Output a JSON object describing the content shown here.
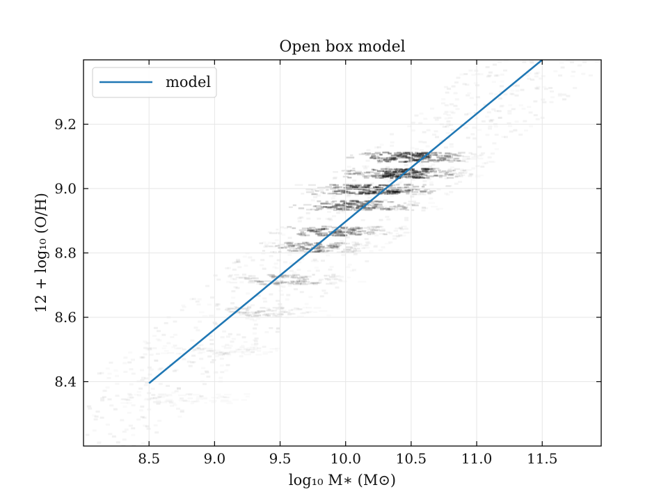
{
  "chart_data": {
    "type": "line",
    "title": "Open box model",
    "xlabel": "log₁₀ M∗ (M⊙)",
    "ylabel": "12 + log₁₀ (O/H)",
    "xlim": [
      8.0,
      11.95
    ],
    "ylim": [
      8.2,
      9.4
    ],
    "xticks": [
      8.5,
      9.0,
      9.5,
      10.0,
      10.5,
      11.0,
      11.5
    ],
    "xtick_labels": [
      "8.5",
      "9.0",
      "9.5",
      "10.0",
      "10.5",
      "11.0",
      "11.5"
    ],
    "yticks": [
      8.4,
      8.6,
      8.8,
      9.0,
      9.2
    ],
    "ytick_labels": [
      "8.4",
      "8.6",
      "8.8",
      "9.0",
      "9.2"
    ],
    "grid": true,
    "legend_position": "top-left",
    "series": [
      {
        "name": "model",
        "color": "#1f77b4",
        "x": [
          8.5,
          11.5
        ],
        "y": [
          8.395,
          9.4
        ]
      }
    ],
    "background_density": {
      "type": "heatmap",
      "color": "#000000",
      "description_rows": [
        {
          "y": 9.1,
          "x_range": [
            9.9,
            11.2
          ],
          "peak": 10.4,
          "strength": 0.55
        },
        {
          "y": 9.05,
          "x_range": [
            9.8,
            11.1
          ],
          "peak": 10.35,
          "strength": 0.6
        },
        {
          "y": 9.0,
          "x_range": [
            9.5,
            10.9
          ],
          "peak": 10.2,
          "strength": 0.55
        },
        {
          "y": 8.95,
          "x_range": [
            9.4,
            10.8
          ],
          "peak": 10.0,
          "strength": 0.45
        },
        {
          "y": 8.87,
          "x_range": [
            9.3,
            10.6
          ],
          "peak": 9.85,
          "strength": 0.35
        },
        {
          "y": 8.82,
          "x_range": [
            9.2,
            10.4
          ],
          "peak": 9.7,
          "strength": 0.3
        },
        {
          "y": 8.72,
          "x_range": [
            9.0,
            10.2
          ],
          "peak": 9.5,
          "strength": 0.2
        },
        {
          "y": 8.62,
          "x_range": [
            8.7,
            10.0
          ],
          "peak": 9.3,
          "strength": 0.12
        },
        {
          "y": 8.5,
          "x_range": [
            8.3,
            9.8
          ],
          "peak": 9.0,
          "strength": 0.06
        },
        {
          "y": 8.35,
          "x_range": [
            8.0,
            9.5
          ],
          "peak": 8.7,
          "strength": 0.04
        }
      ]
    }
  }
}
